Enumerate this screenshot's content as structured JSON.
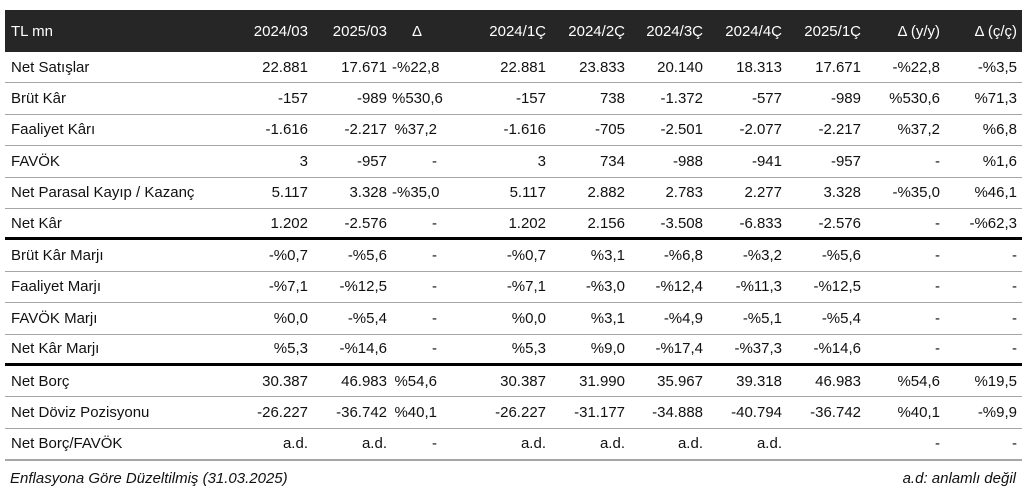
{
  "table": {
    "header": [
      "TL mn",
      "2024/03",
      "2025/03",
      "Δ",
      "2024/1Ç",
      "2024/2Ç",
      "2024/3Ç",
      "2024/4Ç",
      "2025/1Ç",
      "Δ (y/y)",
      "Δ (ç/ç)"
    ],
    "sections": [
      {
        "rows": [
          [
            "Net Satışlar",
            "22.881",
            "17.671",
            "-%22,8",
            "22.881",
            "23.833",
            "20.140",
            "18.313",
            "17.671",
            "-%22,8",
            "-%3,5"
          ],
          [
            "Brüt Kâr",
            "-157",
            "-989",
            "%530,6",
            "-157",
            "738",
            "-1.372",
            "-577",
            "-989",
            "%530,6",
            "%71,3"
          ],
          [
            "Faaliyet Kârı",
            "-1.616",
            "-2.217",
            "%37,2",
            "-1.616",
            "-705",
            "-2.501",
            "-2.077",
            "-2.217",
            "%37,2",
            "%6,8"
          ],
          [
            "FAVÖK",
            "3",
            "-957",
            "-",
            "3",
            "734",
            "-988",
            "-941",
            "-957",
            "-",
            "%1,6"
          ],
          [
            "Net Parasal Kayıp / Kazanç",
            "5.117",
            "3.328",
            "-%35,0",
            "5.117",
            "2.882",
            "2.783",
            "2.277",
            "3.328",
            "-%35,0",
            "%46,1"
          ],
          [
            "Net Kâr",
            "1.202",
            "-2.576",
            "-",
            "1.202",
            "2.156",
            "-3.508",
            "-6.833",
            "-2.576",
            "-",
            "-%62,3"
          ]
        ]
      },
      {
        "rows": [
          [
            "Brüt Kâr Marjı",
            "-%0,7",
            "-%5,6",
            "-",
            "-%0,7",
            "%3,1",
            "-%6,8",
            "-%3,2",
            "-%5,6",
            "-",
            "-"
          ],
          [
            "Faaliyet Marjı",
            "-%7,1",
            "-%12,5",
            "-",
            "-%7,1",
            "-%3,0",
            "-%12,4",
            "-%11,3",
            "-%12,5",
            "-",
            "-"
          ],
          [
            "FAVÖK Marjı",
            "%0,0",
            "-%5,4",
            "-",
            "%0,0",
            "%3,1",
            "-%4,9",
            "-%5,1",
            "-%5,4",
            "-",
            "-"
          ],
          [
            "Net Kâr Marjı",
            "%5,3",
            "-%14,6",
            "-",
            "%5,3",
            "%9,0",
            "-%17,4",
            "-%37,3",
            "-%14,6",
            "-",
            "-"
          ]
        ]
      },
      {
        "rows": [
          [
            "Net Borç",
            "30.387",
            "46.983",
            "%54,6",
            "30.387",
            "31.990",
            "35.967",
            "39.318",
            "46.983",
            "%54,6",
            "%19,5"
          ],
          [
            "Net Döviz Pozisyonu",
            "-26.227",
            "-36.742",
            "%40,1",
            "-26.227",
            "-31.177",
            "-34.888",
            "-40.794",
            "-36.742",
            "%40,1",
            "-%9,9"
          ],
          [
            "Net Borç/FAVÖK",
            "a.d.",
            "a.d.",
            "-",
            "a.d.",
            "a.d.",
            "a.d.",
            "a.d.",
            null,
            "-",
            "-"
          ]
        ]
      }
    ]
  },
  "footer": {
    "note": "Enflasyona Göre Düzeltilmiş (31.03.2025)",
    "legend": "a.d: anlamlı değil"
  }
}
